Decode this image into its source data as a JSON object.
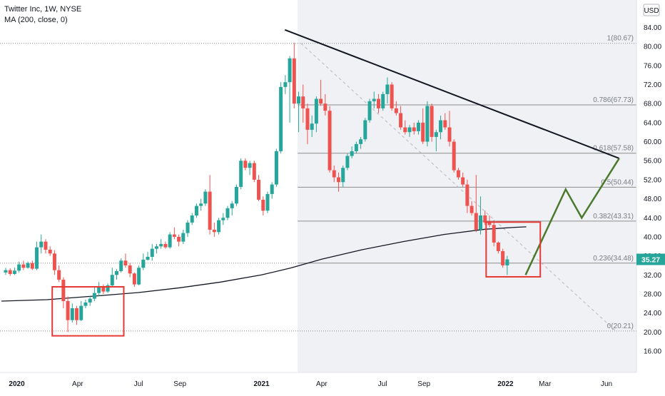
{
  "chart_data": {
    "type": "candlestick",
    "title": "Twitter Inc, 1W, NYSE",
    "indicator": "MA (200, close, 0)",
    "currency": "USD",
    "ylim": [
      16,
      86
    ],
    "y_ticks": [
      16,
      20,
      24,
      28,
      32,
      36,
      40,
      44,
      48,
      52,
      56,
      60,
      64,
      68,
      72,
      76,
      80,
      84
    ],
    "x_ticks": [
      {
        "label": "2020",
        "date": "2020-01-01",
        "bold": true
      },
      {
        "label": "Apr",
        "date": "2020-04-01",
        "bold": false
      },
      {
        "label": "Jul",
        "date": "2020-07-01",
        "bold": false
      },
      {
        "label": "Sep",
        "date": "2020-09-01",
        "bold": false
      },
      {
        "label": "2021",
        "date": "2021-01-01",
        "bold": true
      },
      {
        "label": "Apr",
        "date": "2021-04-01",
        "bold": false
      },
      {
        "label": "Jul",
        "date": "2021-07-01",
        "bold": false
      },
      {
        "label": "Sep",
        "date": "2021-09-01",
        "bold": false
      },
      {
        "label": "2022",
        "date": "2022-01-01",
        "bold": true
      },
      {
        "label": "Mar",
        "date": "2022-03-01",
        "bold": false
      },
      {
        "label": "Jun",
        "date": "2022-06-01",
        "bold": false
      }
    ],
    "last_price": "35.27",
    "colors": {
      "up": "#26a69a",
      "down": "#ef5350",
      "ma": "#131722",
      "annotation": "#e53935",
      "projection": "#4a7a2e",
      "fib": "#9e9e9e"
    },
    "fibonacci": [
      {
        "label": "1(80.67)",
        "value": 80.67
      },
      {
        "label": "0.786(67.73)",
        "value": 67.73
      },
      {
        "label": "0.618(57.58)",
        "value": 57.58
      },
      {
        "label": "0.5(50.44)",
        "value": 50.44
      },
      {
        "label": "0.382(43.31)",
        "value": 43.31
      },
      {
        "label": "0.236(34.48)",
        "value": 34.48
      },
      {
        "label": "0(20.21)",
        "value": 20.21
      }
    ],
    "candles": [
      [
        "2019-12-09",
        32.5,
        33.5,
        32,
        33
      ],
      [
        "2019-12-16",
        33,
        33.4,
        31.8,
        32.2
      ],
      [
        "2019-12-23",
        32.2,
        33.5,
        32,
        32.9
      ],
      [
        "2019-12-30",
        32.9,
        34.8,
        32.5,
        34.2
      ],
      [
        "2020-01-06",
        34.2,
        35,
        33,
        33.5
      ],
      [
        "2020-01-13",
        33.5,
        34.8,
        33.3,
        34.5
      ],
      [
        "2020-01-20",
        34.5,
        35,
        33,
        33.3
      ],
      [
        "2020-01-27",
        33.3,
        39,
        33,
        37.8
      ],
      [
        "2020-02-03",
        37.8,
        40.5,
        36.5,
        39
      ],
      [
        "2020-02-10",
        39,
        39.5,
        36.5,
        37.3
      ],
      [
        "2020-02-17",
        37.3,
        38,
        36,
        36.5
      ],
      [
        "2020-02-24",
        36.5,
        37.2,
        32,
        33
      ],
      [
        "2020-03-02",
        33,
        34,
        30.5,
        31
      ],
      [
        "2020-03-09",
        31,
        31.5,
        25,
        26.5
      ],
      [
        "2020-03-16",
        26.5,
        27.5,
        20,
        22.5
      ],
      [
        "2020-03-23",
        22.5,
        26,
        22,
        25
      ],
      [
        "2020-03-30",
        25,
        25.5,
        21.5,
        22.5
      ],
      [
        "2020-04-06",
        22.5,
        26.5,
        22.3,
        25.5
      ],
      [
        "2020-04-13",
        25.5,
        26.8,
        25,
        26.2
      ],
      [
        "2020-04-20",
        26.2,
        27.5,
        25.5,
        27
      ],
      [
        "2020-04-27",
        27,
        29.5,
        26.5,
        28.2
      ],
      [
        "2020-05-04",
        28.2,
        30.5,
        27.5,
        29.5
      ],
      [
        "2020-05-11",
        29.5,
        30,
        28,
        28.5
      ],
      [
        "2020-05-18",
        28.5,
        30.2,
        28.2,
        29.8
      ],
      [
        "2020-05-25",
        29.8,
        33.5,
        29.5,
        32
      ],
      [
        "2020-06-01",
        32,
        33.2,
        31,
        32.8
      ],
      [
        "2020-06-08",
        32.8,
        35.5,
        32.5,
        35
      ],
      [
        "2020-06-15",
        35,
        36.5,
        33.5,
        34
      ],
      [
        "2020-06-22",
        34,
        34.5,
        31.5,
        32.3
      ],
      [
        "2020-06-29",
        32.3,
        32.5,
        29.5,
        30
      ],
      [
        "2020-07-06",
        30,
        34,
        29.8,
        33.5
      ],
      [
        "2020-07-13",
        33.5,
        36.5,
        33,
        35.2
      ],
      [
        "2020-07-20",
        35.2,
        36.8,
        35,
        35.8
      ],
      [
        "2020-07-27",
        35.8,
        38.5,
        35,
        37.5
      ],
      [
        "2020-08-03",
        37.5,
        38.5,
        36.5,
        38
      ],
      [
        "2020-08-10",
        38,
        39.5,
        37.5,
        38.5
      ],
      [
        "2020-08-17",
        38.5,
        39,
        37.5,
        37.8
      ],
      [
        "2020-08-24",
        37.8,
        41,
        37.5,
        40.5
      ],
      [
        "2020-08-31",
        40.5,
        42,
        39.5,
        40
      ],
      [
        "2020-09-07",
        40,
        40.5,
        38,
        39
      ],
      [
        "2020-09-14",
        39,
        41.5,
        38.5,
        40.8
      ],
      [
        "2020-09-21",
        40.8,
        43.5,
        40,
        43
      ],
      [
        "2020-09-28",
        43,
        45,
        42.5,
        44.5
      ],
      [
        "2020-10-05",
        44.5,
        47,
        44,
        46.5
      ],
      [
        "2020-10-12",
        46.5,
        48,
        45.5,
        47
      ],
      [
        "2020-10-19",
        47,
        50,
        46.5,
        49.5
      ],
      [
        "2020-10-26",
        49.5,
        53,
        40.5,
        41.5
      ],
      [
        "2020-11-02",
        41.5,
        43,
        40,
        41
      ],
      [
        "2020-11-09",
        41,
        44,
        40.5,
        43.5
      ],
      [
        "2020-11-16",
        43.5,
        45,
        42.5,
        44
      ],
      [
        "2020-11-23",
        44,
        46.5,
        43.5,
        46
      ],
      [
        "2020-11-30",
        46,
        47.5,
        44.5,
        47
      ],
      [
        "2020-12-07",
        47,
        51,
        46.5,
        50.5
      ],
      [
        "2020-12-14",
        50.5,
        56.5,
        50,
        56
      ],
      [
        "2020-12-21",
        56,
        56.5,
        54,
        54.5
      ],
      [
        "2020-12-28",
        54.5,
        56,
        53,
        55.5
      ],
      [
        "2020-12-28",
        55.5,
        56,
        51.5,
        52
      ],
      [
        "2021-01-04",
        52,
        53,
        47.5,
        47.8
      ],
      [
        "2021-01-11",
        47.8,
        48.5,
        44.5,
        45.5
      ],
      [
        "2021-01-18",
        45.5,
        49.5,
        45,
        49
      ],
      [
        "2021-01-25",
        49,
        51.5,
        48,
        51
      ],
      [
        "2021-02-01",
        51,
        58.5,
        50.5,
        58
      ],
      [
        "2021-02-08",
        58,
        72.5,
        57.5,
        71.5
      ],
      [
        "2021-02-15",
        71.5,
        74,
        70,
        72.5
      ],
      [
        "2021-02-22",
        72.5,
        78,
        64,
        77.5
      ],
      [
        "2021-03-01",
        77.5,
        80.8,
        67,
        68
      ],
      [
        "2021-03-08",
        68,
        70.5,
        62,
        69.5
      ],
      [
        "2021-03-15",
        69.5,
        72,
        64,
        67
      ],
      [
        "2021-03-22",
        67,
        68,
        59.5,
        62.5
      ],
      [
        "2021-03-29",
        62.5,
        65.5,
        61,
        63.8
      ],
      [
        "2021-04-05",
        63.8,
        69.5,
        62,
        69
      ],
      [
        "2021-04-12",
        69,
        73,
        67.5,
        68
      ],
      [
        "2021-04-19",
        68,
        70,
        65.5,
        66.5
      ],
      [
        "2021-04-26",
        66.5,
        67.5,
        53.5,
        54
      ],
      [
        "2021-05-03",
        54,
        55,
        51.5,
        52.5
      ],
      [
        "2021-05-10",
        52.5,
        53.5,
        49.5,
        51.5
      ],
      [
        "2021-05-17",
        51.5,
        55,
        50.5,
        54.5
      ],
      [
        "2021-05-24",
        54.5,
        57.5,
        54,
        57
      ],
      [
        "2021-05-31",
        57,
        59,
        56.5,
        58
      ],
      [
        "2021-06-07",
        58,
        60,
        57.5,
        59.5
      ],
      [
        "2021-06-14",
        59.5,
        61,
        58.5,
        60.5
      ],
      [
        "2021-06-21",
        60.5,
        65,
        60,
        64.5
      ],
      [
        "2021-06-28",
        64.5,
        69,
        64,
        68.5
      ],
      [
        "2021-07-05",
        68.5,
        70.5,
        67,
        69
      ],
      [
        "2021-07-12",
        69,
        70,
        66,
        67
      ],
      [
        "2021-07-19",
        67,
        70.5,
        66.5,
        70
      ],
      [
        "2021-07-26",
        70,
        73.5,
        68,
        72
      ],
      [
        "2021-08-02",
        72,
        72.5,
        66.5,
        67
      ],
      [
        "2021-08-09",
        67,
        68.5,
        65.5,
        66
      ],
      [
        "2021-08-16",
        66,
        67.5,
        62.5,
        63
      ],
      [
        "2021-08-23",
        63,
        64.5,
        61.5,
        62
      ],
      [
        "2021-08-30",
        62,
        63.5,
        61,
        63
      ],
      [
        "2021-09-06",
        63,
        64,
        61.5,
        62.2
      ],
      [
        "2021-09-13",
        62.2,
        64.5,
        61.5,
        64
      ],
      [
        "2021-09-20",
        64,
        67,
        59.5,
        60
      ],
      [
        "2021-09-27",
        60,
        68.5,
        59,
        67.5
      ],
      [
        "2021-10-04",
        67.5,
        68,
        60,
        61
      ],
      [
        "2021-10-11",
        61,
        62.5,
        58,
        62
      ],
      [
        "2021-10-18",
        62,
        65.5,
        60.5,
        64.5
      ],
      [
        "2021-10-25",
        64.5,
        66,
        62.5,
        63
      ],
      [
        "2021-11-01",
        63,
        66.5,
        59,
        60
      ],
      [
        "2021-11-08",
        60,
        60.5,
        53.5,
        54
      ],
      [
        "2021-11-15",
        54,
        54.5,
        52,
        52.5
      ],
      [
        "2021-11-22",
        52.5,
        53.5,
        50.5,
        51
      ],
      [
        "2021-11-29",
        51,
        52,
        45,
        46.5
      ],
      [
        "2021-12-06",
        46.5,
        47.5,
        44.5,
        45
      ],
      [
        "2021-12-13",
        45,
        53,
        41,
        41.5
      ],
      [
        "2021-12-20",
        41.5,
        48.5,
        40.5,
        44.5
      ],
      [
        "2021-12-27",
        44.5,
        45.5,
        42.5,
        43
      ],
      [
        "2022-01-03",
        43,
        44.5,
        42,
        42.5
      ],
      [
        "2022-01-10",
        42.5,
        43.5,
        38,
        38.8
      ],
      [
        "2022-01-17",
        38.8,
        39,
        36.5,
        37
      ],
      [
        "2022-01-24",
        37,
        37.5,
        33.5,
        34
      ],
      [
        "2022-01-31",
        34,
        36,
        32,
        35.27
      ]
    ],
    "ma200": [
      [
        "2019-12-09",
        26.5
      ],
      [
        "2020-02-15",
        26.8
      ],
      [
        "2020-05-01",
        27.6
      ],
      [
        "2020-07-01",
        28.3
      ],
      [
        "2020-09-01",
        29.3
      ],
      [
        "2020-11-01",
        30.5
      ],
      [
        "2021-01-01",
        32.0
      ],
      [
        "2021-02-15",
        33.5
      ],
      [
        "2021-04-01",
        35.3
      ],
      [
        "2021-06-01",
        37.3
      ],
      [
        "2021-08-01",
        39.0
      ],
      [
        "2021-10-01",
        40.5
      ],
      [
        "2021-12-01",
        41.6
      ],
      [
        "2022-01-15",
        42.0
      ],
      [
        "2022-02-01",
        42.1
      ]
    ],
    "trendline": [
      [
        "2021-02-05",
        83.5
      ],
      [
        "2022-06-20",
        56.5
      ]
    ],
    "fib_diagonal": [
      [
        "2021-03-01",
        80.67
      ],
      [
        "2022-06-15",
        20.21
      ]
    ],
    "projection": [
      [
        "2022-01-31",
        32
      ],
      [
        "2022-04-01",
        50
      ],
      [
        "2022-04-25",
        44
      ],
      [
        "2022-06-20",
        56.5
      ]
    ],
    "highlight_boxes": [
      {
        "x0": "2020-02-23",
        "x1": "2020-06-09",
        "y0": 19.2,
        "y1": 29.5
      },
      {
        "x0": "2021-12-03",
        "x1": "2022-02-22",
        "y0": 31.6,
        "y1": 43.1
      }
    ],
    "shaded_region_start": "2021-02-24"
  }
}
